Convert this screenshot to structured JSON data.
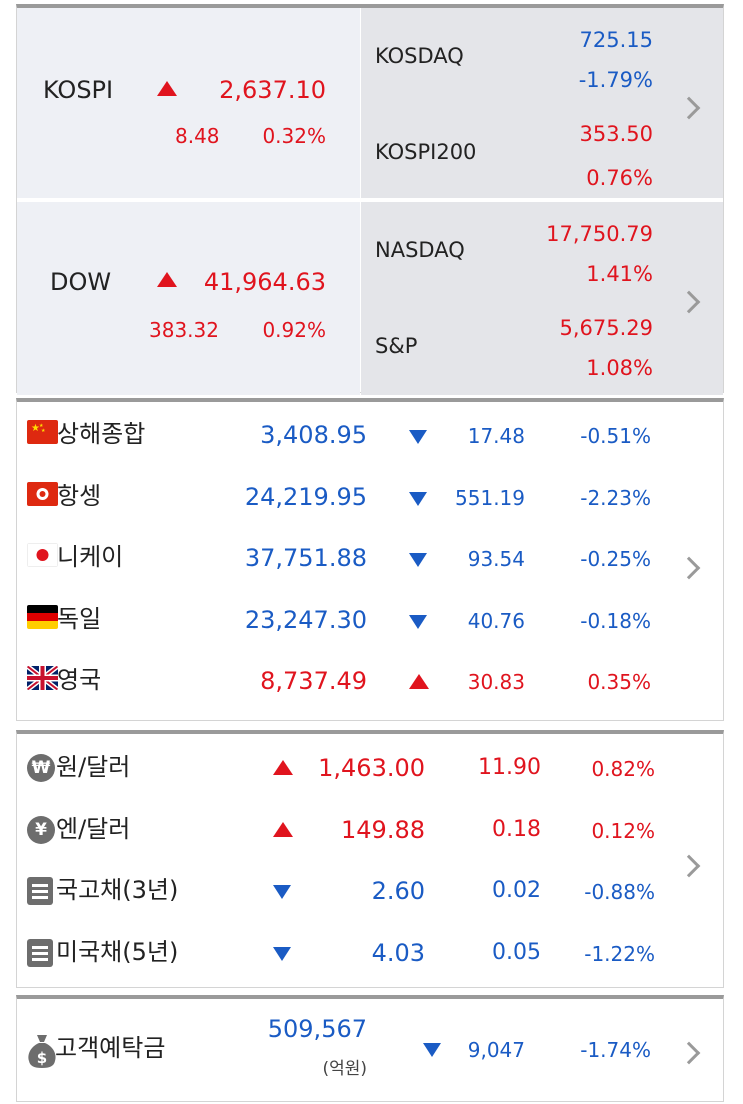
{
  "domestic": {
    "kospi": {
      "name": "KOSPI",
      "value": "2,637.10",
      "change": "8.48",
      "pct": "0.32%",
      "dir": "up"
    },
    "kosdaq": {
      "name": "KOSDAQ",
      "value": "725.15",
      "pct": "-1.79%",
      "dir": "down"
    },
    "kospi200": {
      "name": "KOSPI200",
      "value": "353.50",
      "pct": "0.76%",
      "dir": "up"
    }
  },
  "us": {
    "dow": {
      "name": "DOW",
      "value": "41,964.63",
      "change": "383.32",
      "pct": "0.92%",
      "dir": "up"
    },
    "nasdaq": {
      "name": "NASDAQ",
      "value": "17,750.79",
      "pct": "1.41%",
      "dir": "up"
    },
    "sp": {
      "name": "S&P",
      "value": "5,675.29",
      "pct": "1.08%",
      "dir": "up"
    }
  },
  "world": [
    {
      "flag": "china-flag-icon",
      "name": "상해종합",
      "value": "3,408.95",
      "change": "17.48",
      "pct": "-0.51%",
      "dir": "down"
    },
    {
      "flag": "hongkong-flag-icon",
      "name": "항셍",
      "value": "24,219.95",
      "change": "551.19",
      "pct": "-2.23%",
      "dir": "down"
    },
    {
      "flag": "japan-flag-icon",
      "name": "니케이",
      "value": "37,751.88",
      "change": "93.54",
      "pct": "-0.25%",
      "dir": "down"
    },
    {
      "flag": "germany-flag-icon",
      "name": "독일",
      "value": "23,247.30",
      "change": "40.76",
      "pct": "-0.18%",
      "dir": "down"
    },
    {
      "flag": "uk-flag-icon",
      "name": "영국",
      "value": "8,737.49",
      "change": "30.83",
      "pct": "0.35%",
      "dir": "up"
    }
  ],
  "rates": [
    {
      "icon": "won-coin-icon",
      "glyph": "₩",
      "name": "원/달러",
      "value": "1,463.00",
      "change": "11.90",
      "pct": "0.82%",
      "dir": "up"
    },
    {
      "icon": "yen-coin-icon",
      "glyph": "¥",
      "name": "엔/달러",
      "value": "149.88",
      "change": "0.18",
      "pct": "0.12%",
      "dir": "up"
    },
    {
      "icon": "bond-doc-icon",
      "glyph": "",
      "name": "국고채(3년)",
      "value": "2.60",
      "change": "0.02",
      "pct": "-0.88%",
      "dir": "down"
    },
    {
      "icon": "bond-doc-icon",
      "glyph": "",
      "name": "미국채(5년)",
      "value": "4.03",
      "change": "0.05",
      "pct": "-1.22%",
      "dir": "down"
    }
  ],
  "deposit": {
    "name": "고객예탁금",
    "value": "509,567",
    "unit": "(억원)",
    "change": "9,047",
    "pct": "-1.74%",
    "dir": "down",
    "icon": "money-bag-icon"
  },
  "colors": {
    "up": "#e0141e",
    "down": "#1a5bc4",
    "panel_left": "#eef0f5",
    "panel_right": "#e4e5e9"
  }
}
